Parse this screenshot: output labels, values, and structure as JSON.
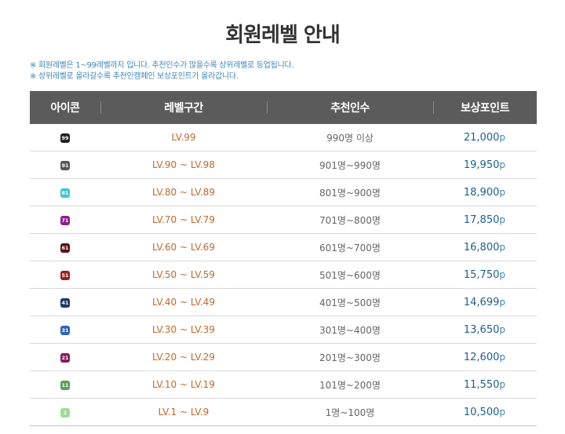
{
  "page": {
    "title": "회원레벨 안내",
    "notes": [
      "※ 회원레벨은 1~99레벨까지 입니다. 추천인수가 많을수록 상위레벨로 등업됩니다.",
      "※ 상위레벨로 올라갈수록 추천인캠페인 보상포인트가 올라갑니다."
    ]
  },
  "table": {
    "headers": {
      "icon": "아이콘",
      "range": "레벨구간",
      "count": "추천인수",
      "points": "보상포인트"
    },
    "point_unit": "p",
    "rows": [
      {
        "badge": "99",
        "badge_color": "#222222",
        "range": "LV.99",
        "count": "990명 이상",
        "points": "21,000"
      },
      {
        "badge": "91",
        "badge_color": "#555555",
        "range": "LV.90 ~ LV.98",
        "count": "901명~990명",
        "points": "19,950"
      },
      {
        "badge": "81",
        "badge_color": "#3cc6d8",
        "range": "LV.80 ~ LV.89",
        "count": "801명~900명",
        "points": "18,900"
      },
      {
        "badge": "71",
        "badge_color": "#8e1f8c",
        "range": "LV.70 ~ LV.79",
        "count": "701명~800명",
        "points": "17,850"
      },
      {
        "badge": "61",
        "badge_color": "#5a1414",
        "range": "LV.60 ~ LV.69",
        "count": "601명~700명",
        "points": "16,800"
      },
      {
        "badge": "51",
        "badge_color": "#9a1f1f",
        "range": "LV.50 ~ LV.59",
        "count": "501명~600명",
        "points": "15,750"
      },
      {
        "badge": "41",
        "badge_color": "#1d3a6e",
        "range": "LV.40 ~ LV.49",
        "count": "401명~500명",
        "points": "14,699"
      },
      {
        "badge": "31",
        "badge_color": "#2e64b7",
        "range": "LV.30 ~ LV.39",
        "count": "301명~400명",
        "points": "13,650"
      },
      {
        "badge": "21",
        "badge_color": "#8a1a5a",
        "range": "LV.20 ~ LV.29",
        "count": "201명~300명",
        "points": "12,600"
      },
      {
        "badge": "11",
        "badge_color": "#5aa058",
        "range": "LV.10 ~ LV.19",
        "count": "101명~200명",
        "points": "11,550"
      },
      {
        "badge": "1",
        "badge_color": "#9fdc98",
        "range": "LV.1 ~ LV.9",
        "count": "1명~100명",
        "points": "10,500"
      }
    ]
  }
}
